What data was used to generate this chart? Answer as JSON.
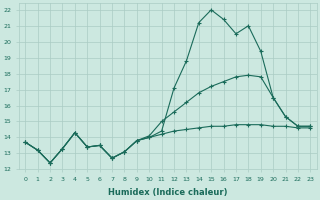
{
  "xlabel": "Humidex (Indice chaleur)",
  "ylabel": "",
  "bg_color": "#cce8e0",
  "grid_color": "#aaccC4",
  "line_color": "#1a6b5a",
  "xlim_min": -0.5,
  "xlim_max": 23.5,
  "ylim_min": 12,
  "ylim_max": 22.4,
  "yticks": [
    12,
    13,
    14,
    15,
    16,
    17,
    18,
    19,
    20,
    21,
    22
  ],
  "xticks": [
    0,
    1,
    2,
    3,
    4,
    5,
    6,
    7,
    8,
    9,
    10,
    11,
    12,
    13,
    14,
    15,
    16,
    17,
    18,
    19,
    20,
    21,
    22,
    23
  ],
  "series": [
    [
      13.7,
      13.2,
      12.4,
      13.3,
      14.3,
      13.4,
      13.5,
      12.7,
      13.1,
      13.8,
      14.0,
      14.4,
      17.1,
      18.8,
      21.2,
      22.0,
      21.4,
      20.5,
      21.0,
      19.4,
      16.5,
      15.3,
      14.7,
      14.7
    ],
    [
      13.7,
      13.2,
      12.4,
      13.3,
      14.3,
      13.4,
      13.5,
      12.7,
      13.1,
      13.8,
      14.1,
      15.0,
      15.6,
      16.2,
      16.8,
      17.2,
      17.5,
      17.8,
      17.9,
      17.8,
      16.5,
      15.3,
      14.7,
      14.7
    ],
    [
      13.7,
      13.2,
      12.4,
      13.3,
      14.3,
      13.4,
      13.5,
      12.7,
      13.1,
      13.8,
      14.0,
      14.2,
      14.4,
      14.5,
      14.6,
      14.7,
      14.7,
      14.8,
      14.8,
      14.8,
      14.7,
      14.7,
      14.6,
      14.6
    ]
  ]
}
